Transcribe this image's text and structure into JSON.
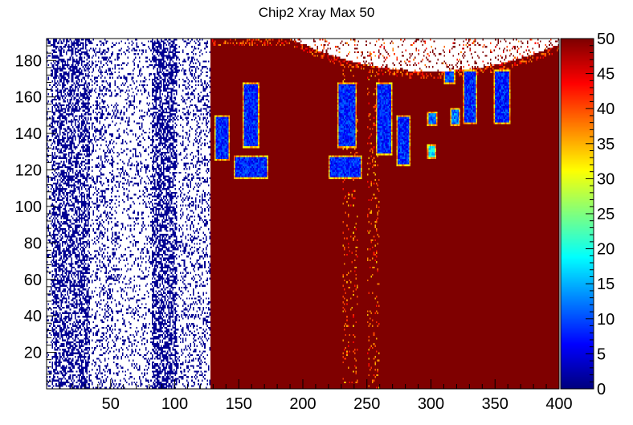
{
  "chart_data": {
    "type": "heatmap",
    "title": "Chip2 Xray Max 50",
    "xlabel": "",
    "ylabel": "",
    "xlim": [
      0,
      400
    ],
    "ylim": [
      0,
      192
    ],
    "zlim": [
      0,
      50
    ],
    "x_ticks": [
      50,
      100,
      150,
      200,
      250,
      300,
      350,
      400
    ],
    "y_ticks": [
      20,
      40,
      60,
      80,
      100,
      120,
      140,
      160,
      180
    ],
    "z_ticks": [
      0,
      5,
      10,
      15,
      20,
      25,
      30,
      35,
      40,
      45,
      50
    ],
    "colormap": [
      "#00007f",
      "#0000ff",
      "#007fff",
      "#00ffff",
      "#7fff7f",
      "#ffff00",
      "#ff7f00",
      "#ff0000",
      "#7f0000"
    ],
    "regions": [
      {
        "name": "low-count-noise-region",
        "x_range": [
          0,
          128
        ],
        "y_range": [
          0,
          192
        ],
        "value": 1
      },
      {
        "name": "saturated-region",
        "x_range": [
          128,
          400
        ],
        "y_range": [
          0,
          192
        ],
        "value": 50
      },
      {
        "name": "low-blob-1",
        "x_range": [
          131,
          143
        ],
        "y_range": [
          125,
          150
        ],
        "value": 8
      },
      {
        "name": "low-blob-2",
        "x_range": [
          153,
          166
        ],
        "y_range": [
          132,
          168
        ],
        "value": 8
      },
      {
        "name": "low-blob-3",
        "x_range": [
          146,
          173
        ],
        "y_range": [
          115,
          128
        ],
        "value": 8
      },
      {
        "name": "low-blob-4",
        "x_range": [
          227,
          242
        ],
        "y_range": [
          132,
          168
        ],
        "value": 8
      },
      {
        "name": "low-blob-5",
        "x_range": [
          220,
          246
        ],
        "y_range": [
          115,
          128
        ],
        "value": 8
      },
      {
        "name": "low-blob-6",
        "x_range": [
          257,
          270
        ],
        "y_range": [
          128,
          168
        ],
        "value": 8
      },
      {
        "name": "low-blob-7",
        "x_range": [
          273,
          284
        ],
        "y_range": [
          122,
          150
        ],
        "value": 8
      },
      {
        "name": "low-blob-8",
        "x_range": [
          297,
          305
        ],
        "y_range": [
          144,
          152
        ],
        "value": 12
      },
      {
        "name": "low-blob-9",
        "x_range": [
          297,
          304
        ],
        "y_range": [
          126,
          134
        ],
        "value": 18
      },
      {
        "name": "low-blob-10",
        "x_range": [
          315,
          323
        ],
        "y_range": [
          144,
          154
        ],
        "value": 12
      },
      {
        "name": "low-blob-11",
        "x_range": [
          325,
          336
        ],
        "y_range": [
          145,
          175
        ],
        "value": 8
      },
      {
        "name": "low-blob-12",
        "x_range": [
          310,
          319
        ],
        "y_range": [
          167,
          175
        ],
        "value": 10
      },
      {
        "name": "low-blob-13",
        "x_range": [
          349,
          362
        ],
        "y_range": [
          145,
          175
        ],
        "value": 8
      }
    ]
  }
}
